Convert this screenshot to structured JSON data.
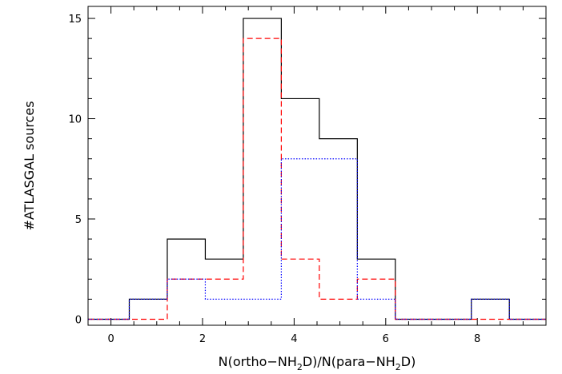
{
  "chart_data": {
    "type": "histogram",
    "xlabel": {
      "pre": "N(ortho−NH",
      "sub1": "2",
      "mid": "D)/N(para−NH",
      "sub2": "2",
      "post": "D)"
    },
    "ylabel": "#ATLASGAL  sources",
    "xlim": [
      -0.5,
      9.5
    ],
    "ylim": [
      -0.3,
      15.6
    ],
    "x_ticks": [
      0,
      2,
      4,
      6,
      8
    ],
    "y_ticks": [
      0,
      5,
      10,
      15
    ],
    "bin_edges": [
      -0.5,
      0.4,
      1.23,
      2.06,
      2.89,
      3.72,
      4.55,
      5.38,
      6.21,
      7.04,
      7.87,
      8.7,
      9.5
    ],
    "series": [
      {
        "values": [
          0,
          1,
          4,
          3,
          15,
          11,
          9,
          3,
          0,
          0,
          1,
          0
        ],
        "color": "#000000",
        "style": "solid"
      },
      {
        "values": [
          0,
          0,
          2,
          2,
          14,
          3,
          1,
          2,
          0,
          0,
          0,
          0
        ],
        "color": "#ff0000",
        "style": "dashed"
      },
      {
        "values": [
          0,
          1,
          2,
          1,
          1,
          8,
          8,
          1,
          0,
          0,
          1,
          0
        ],
        "color": "#0000ff",
        "style": "dotted"
      }
    ]
  }
}
